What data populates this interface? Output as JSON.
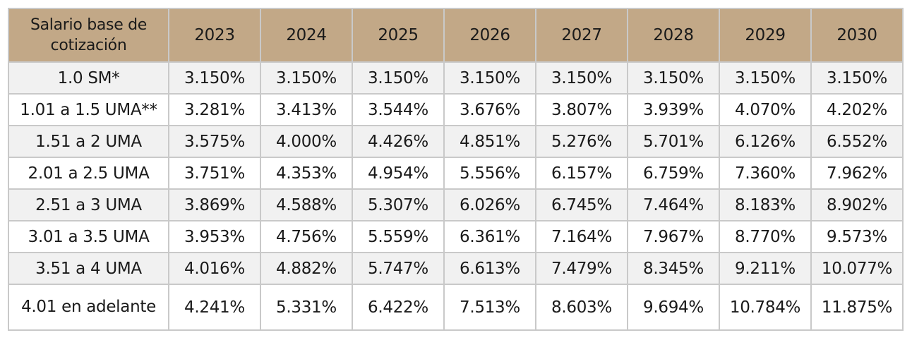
{
  "table": {
    "header": {
      "first": "Salario base de cotización",
      "years": [
        "2023",
        "2024",
        "2025",
        "2026",
        "2027",
        "2028",
        "2029",
        "2030"
      ]
    },
    "rows": [
      {
        "label": "1.0 SM*",
        "values": [
          "3.150%",
          "3.150%",
          "3.150%",
          "3.150%",
          "3.150%",
          "3.150%",
          "3.150%",
          "3.150%"
        ]
      },
      {
        "label": "1.01 a 1.5 UMA**",
        "values": [
          "3.281%",
          "3.413%",
          "3.544%",
          "3.676%",
          "3.807%",
          "3.939%",
          "4.070%",
          "4.202%"
        ]
      },
      {
        "label": "1.51 a 2 UMA",
        "values": [
          "3.575%",
          "4.000%",
          "4.426%",
          "4.851%",
          "5.276%",
          "5.701%",
          "6.126%",
          "6.552%"
        ]
      },
      {
        "label": "2.01 a 2.5 UMA",
        "values": [
          "3.751%",
          "4.353%",
          "4.954%",
          "5.556%",
          "6.157%",
          "6.759%",
          "7.360%",
          "7.962%"
        ]
      },
      {
        "label": "2.51 a 3 UMA",
        "values": [
          "3.869%",
          "4.588%",
          "5.307%",
          "6.026%",
          "6.745%",
          "7.464%",
          "8.183%",
          "8.902%"
        ]
      },
      {
        "label": "3.01 a 3.5 UMA",
        "values": [
          "3.953%",
          "4.756%",
          "5.559%",
          "6.361%",
          "7.164%",
          "7.967%",
          "8.770%",
          "9.573%"
        ]
      },
      {
        "label": "3.51 a 4 UMA",
        "values": [
          "4.016%",
          "4.882%",
          "5.747%",
          "6.613%",
          "7.479%",
          "8.345%",
          "9.211%",
          "10.077%"
        ]
      },
      {
        "label": "4.01 en adelante",
        "values": [
          "4.241%",
          "5.331%",
          "6.422%",
          "7.513%",
          "8.603%",
          "9.694%",
          "10.784%",
          "11.875%"
        ]
      }
    ],
    "colors": {
      "header_bg": "#c2a887",
      "stripe_bg": "#f1f1f1",
      "border": "#c9c9c9"
    }
  }
}
